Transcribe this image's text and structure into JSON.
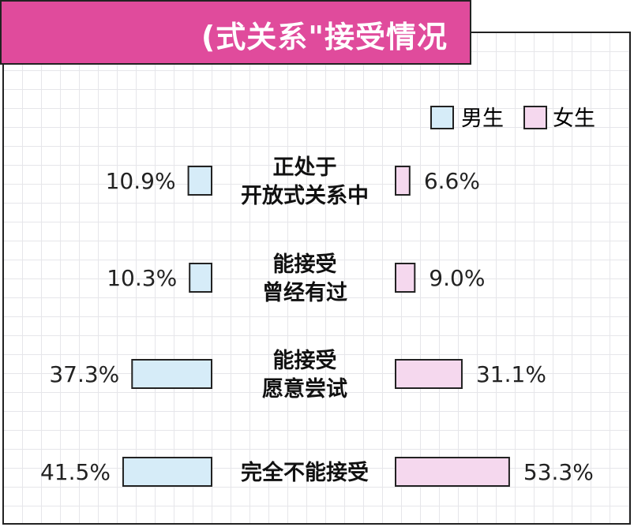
{
  "chart_data": {
    "type": "bar",
    "title": "(式关系\"接受情况",
    "categories": [
      [
        "正处于",
        "开放式关系中"
      ],
      [
        "能接受",
        "曾经有过"
      ],
      [
        "能接受",
        "愿意尝试"
      ],
      [
        "完全不能接受"
      ]
    ],
    "series": [
      {
        "name": "男生",
        "values": [
          10.9,
          10.3,
          37.3,
          41.5
        ],
        "labels": [
          "10.9%",
          "10.3%",
          "37.3%",
          "41.5%"
        ],
        "color": "#d6ecf8"
      },
      {
        "name": "女生",
        "values": [
          6.6,
          9.0,
          31.1,
          53.3
        ],
        "labels": [
          "6.6%",
          "9.0%",
          "31.1%",
          "53.3%"
        ],
        "color": "#f5d8ee"
      }
    ],
    "xlim": [
      0,
      60
    ],
    "grid": true,
    "legend": "top-right",
    "colors": {
      "banner": "#e04b9c",
      "border": "#222222"
    }
  }
}
